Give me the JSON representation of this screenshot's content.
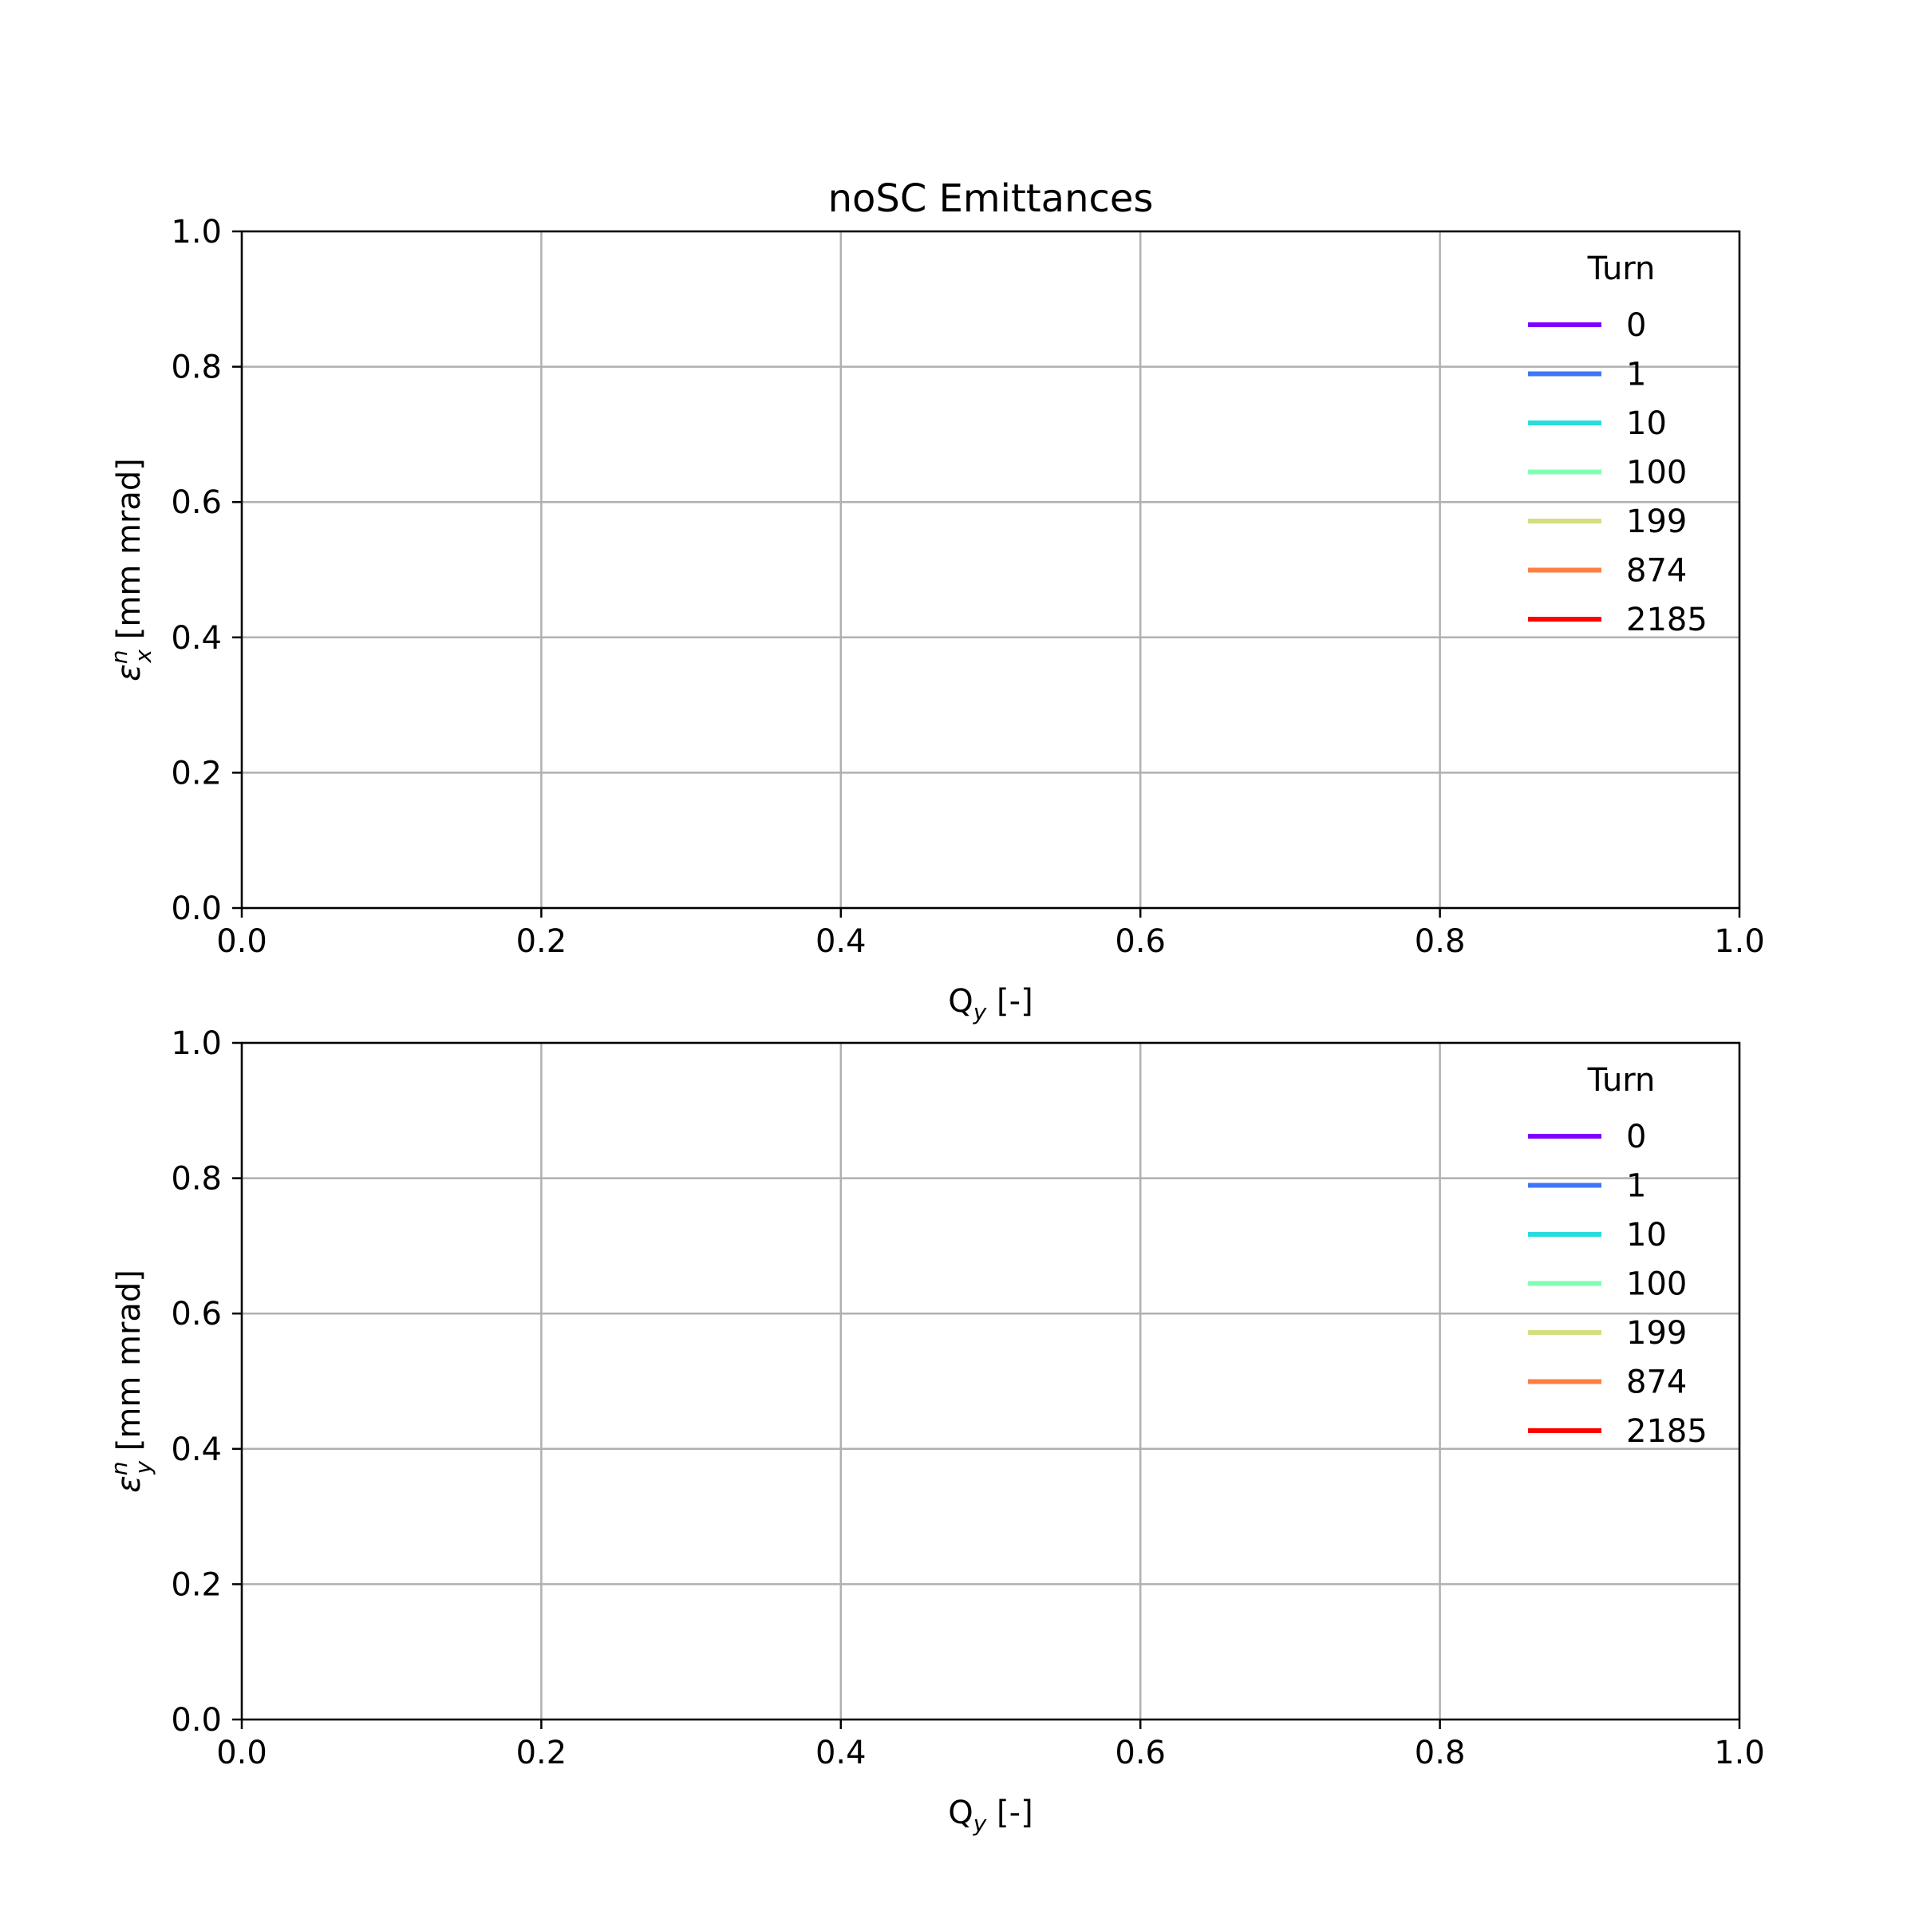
{
  "chart_data": [
    {
      "type": "line",
      "title": "noSC Emittances",
      "xlabel": {
        "base": "Q",
        "sub": "y",
        "unit": " [-]"
      },
      "ylabel": {
        "sym": "ε",
        "sup": "n",
        "sub": "x",
        "unit": " [mm mrad]"
      },
      "xlim": [
        0.0,
        1.0
      ],
      "ylim": [
        0.0,
        1.0
      ],
      "x_ticks": [
        "0.0",
        "0.2",
        "0.4",
        "0.6",
        "0.8",
        "1.0"
      ],
      "y_ticks": [
        "0.0",
        "0.2",
        "0.4",
        "0.6",
        "0.8",
        "1.0"
      ],
      "grid": true,
      "legend_title": "Turn",
      "legend_position": "top-right",
      "series": [
        {
          "name": "0",
          "color": "#8000ff",
          "x": [],
          "y": []
        },
        {
          "name": "1",
          "color": "#3e76f8",
          "x": [],
          "y": []
        },
        {
          "name": "10",
          "color": "#2adddd",
          "x": [],
          "y": []
        },
        {
          "name": "100",
          "color": "#80ffb4",
          "x": [],
          "y": []
        },
        {
          "name": "199",
          "color": "#d4dd80",
          "x": [],
          "y": []
        },
        {
          "name": "874",
          "color": "#ff7e41",
          "x": [],
          "y": []
        },
        {
          "name": "2185",
          "color": "#ff0000",
          "x": [],
          "y": []
        }
      ]
    },
    {
      "type": "line",
      "title": "",
      "xlabel": {
        "base": "Q",
        "sub": "y",
        "unit": " [-]"
      },
      "ylabel": {
        "sym": "ε",
        "sup": "n",
        "sub": "y",
        "unit": " [mm mrad]"
      },
      "xlim": [
        0.0,
        1.0
      ],
      "ylim": [
        0.0,
        1.0
      ],
      "x_ticks": [
        "0.0",
        "0.2",
        "0.4",
        "0.6",
        "0.8",
        "1.0"
      ],
      "y_ticks": [
        "0.0",
        "0.2",
        "0.4",
        "0.6",
        "0.8",
        "1.0"
      ],
      "grid": true,
      "legend_title": "Turn",
      "legend_position": "top-right",
      "series": [
        {
          "name": "0",
          "color": "#8000ff",
          "x": [],
          "y": []
        },
        {
          "name": "1",
          "color": "#3e76f8",
          "x": [],
          "y": []
        },
        {
          "name": "10",
          "color": "#2adddd",
          "x": [],
          "y": []
        },
        {
          "name": "100",
          "color": "#80ffb4",
          "x": [],
          "y": []
        },
        {
          "name": "199",
          "color": "#d4dd80",
          "x": [],
          "y": []
        },
        {
          "name": "874",
          "color": "#ff7e41",
          "x": [],
          "y": []
        },
        {
          "name": "2185",
          "color": "#ff0000",
          "x": [],
          "y": []
        }
      ]
    }
  ]
}
